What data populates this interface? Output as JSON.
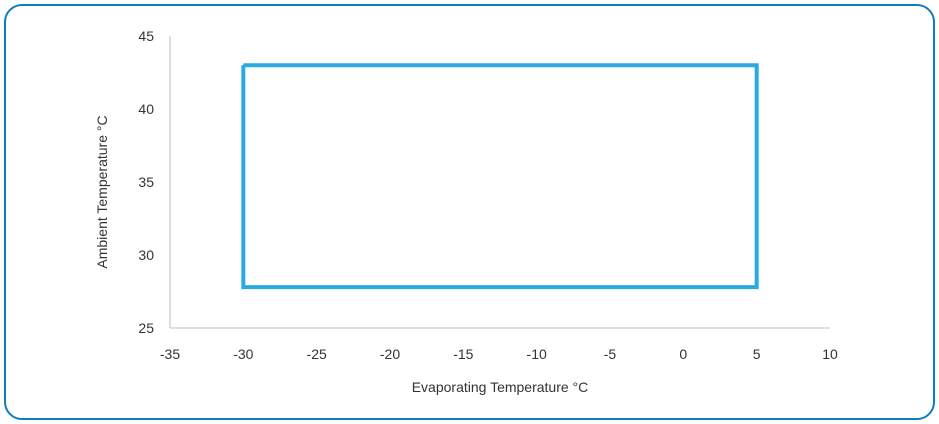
{
  "chart_data": {
    "type": "line",
    "title": "",
    "xlabel": "Evaporating Temperature °C",
    "ylabel": "Ambient Temperature °C",
    "xlim": [
      -35,
      10
    ],
    "ylim": [
      25,
      45
    ],
    "x_ticks": [
      "-35",
      "-30",
      "-25",
      "-20",
      "-15",
      "-10",
      "-5",
      "0",
      "5",
      "10"
    ],
    "y_ticks": [
      "45",
      "40",
      "35",
      "30",
      "25"
    ],
    "grid": false,
    "legend": "none",
    "series": [
      {
        "color": "#29aae1",
        "x": [
          -30,
          5,
          5,
          -30,
          -30
        ],
        "y": [
          43,
          43,
          27.8,
          27.8,
          43
        ]
      }
    ]
  },
  "colors": {
    "frame_border": "#0f7ec0",
    "axis": "#bfbfbf",
    "series": "#29aae1"
  }
}
